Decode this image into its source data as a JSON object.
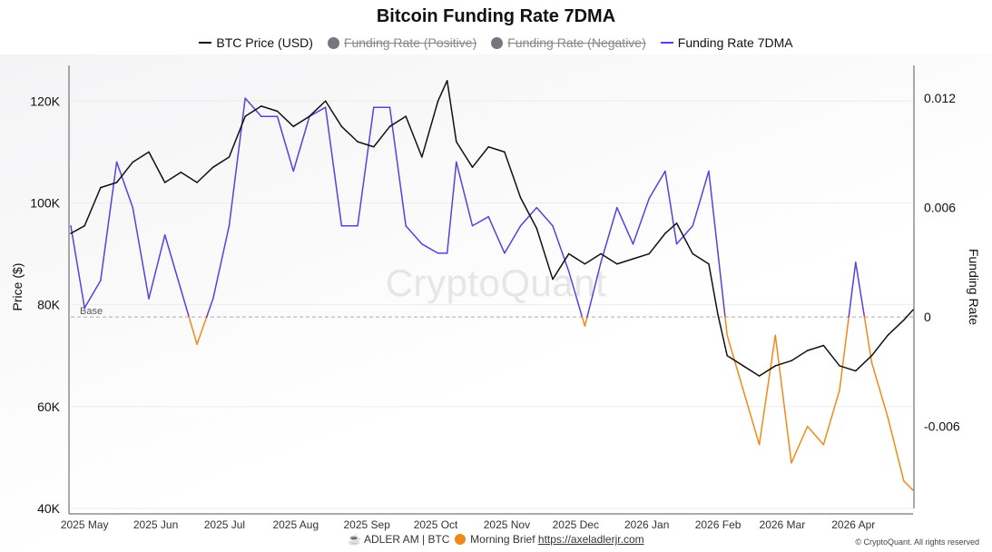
{
  "title": "Bitcoin Funding Rate 7DMA",
  "legend": [
    {
      "label": "BTC Price (USD)",
      "marker": "line",
      "color": "#111111",
      "enabled": true
    },
    {
      "label": "Funding Rate (Positive)",
      "marker": "dot",
      "color": "#76767e",
      "enabled": false
    },
    {
      "label": "Funding Rate (Negative)",
      "marker": "dot",
      "color": "#76767e",
      "enabled": false
    },
    {
      "label": "Funding Rate 7DMA",
      "marker": "line",
      "color": "#5b3fe0",
      "enabled": true
    }
  ],
  "watermark": "CryptoQuant",
  "footer": {
    "source_text": "ADLER AM | BTC",
    "brief_text": "Morning Brief",
    "link_text": "https://axeladlerjr.com",
    "copyright": "© CryptoQuant. All rights reserved"
  },
  "colors": {
    "price": "#111111",
    "funding_positive": "#5b3fe0",
    "funding_negative": "#ef8a1a",
    "baseline": "#aaaaaa",
    "grid": "#ececec"
  },
  "chart_data": {
    "type": "line",
    "x": [
      "2025-04-25",
      "2025-05-01",
      "2025-05-08",
      "2025-05-15",
      "2025-05-22",
      "2025-05-29",
      "2025-06-05",
      "2025-06-12",
      "2025-06-19",
      "2025-06-26",
      "2025-07-03",
      "2025-07-10",
      "2025-07-17",
      "2025-07-24",
      "2025-07-31",
      "2025-08-07",
      "2025-08-14",
      "2025-08-21",
      "2025-08-28",
      "2025-09-04",
      "2025-09-11",
      "2025-09-18",
      "2025-09-25",
      "2025-10-02",
      "2025-10-06",
      "2025-10-10",
      "2025-10-17",
      "2025-10-24",
      "2025-10-31",
      "2025-11-07",
      "2025-11-14",
      "2025-11-21",
      "2025-11-28",
      "2025-12-05",
      "2025-12-12",
      "2025-12-19",
      "2025-12-26",
      "2026-01-02",
      "2026-01-09",
      "2026-01-14",
      "2026-01-21",
      "2026-01-28",
      "2026-02-01",
      "2026-02-05",
      "2026-02-12",
      "2026-02-19",
      "2026-02-26",
      "2026-03-05",
      "2026-03-12",
      "2026-03-19",
      "2026-03-26",
      "2026-04-02",
      "2026-04-09",
      "2026-04-16",
      "2026-04-23",
      "2026-04-27"
    ],
    "series": [
      {
        "name": "BTC Price (USD)",
        "axis": "left",
        "values": [
          94000,
          95500,
          103000,
          104000,
          108000,
          110000,
          104000,
          106000,
          104000,
          107000,
          109000,
          117000,
          119000,
          118000,
          115000,
          117000,
          120000,
          115000,
          112000,
          111000,
          115000,
          117000,
          109000,
          120000,
          124000,
          112000,
          107000,
          111000,
          110000,
          101000,
          95000,
          85000,
          90000,
          88000,
          90000,
          88000,
          89000,
          90000,
          94000,
          96000,
          90000,
          88000,
          78000,
          70000,
          68000,
          66000,
          68000,
          69000,
          71000,
          72000,
          68000,
          67000,
          70000,
          74000,
          77000,
          79000
        ]
      },
      {
        "name": "Funding Rate 7DMA",
        "axis": "right",
        "values": [
          0.005,
          0.0005,
          0.002,
          0.0085,
          0.006,
          0.001,
          0.0045,
          0.0015,
          -0.0015,
          0.001,
          0.005,
          0.012,
          0.011,
          0.011,
          0.008,
          0.011,
          0.0115,
          0.005,
          0.005,
          0.0115,
          0.0115,
          0.005,
          0.004,
          0.0035,
          0.0035,
          0.0085,
          0.005,
          0.0055,
          0.0035,
          0.005,
          0.006,
          0.005,
          0.0025,
          -0.0005,
          0.003,
          0.006,
          0.004,
          0.0065,
          0.008,
          0.004,
          0.005,
          0.008,
          0.0035,
          -0.001,
          -0.004,
          -0.007,
          -0.001,
          -0.008,
          -0.006,
          -0.007,
          -0.004,
          0.003,
          -0.0025,
          -0.0055,
          -0.009,
          -0.0095
        ]
      }
    ],
    "xaxis_ticks": [
      "2025 May",
      "2025 Jun",
      "2025 Jul",
      "2025 Aug",
      "2025 Sep",
      "2025 Oct",
      "2025 Nov",
      "2025 Dec",
      "2026 Jan",
      "2026 Feb",
      "2026 Mar",
      "2026 Apr"
    ],
    "yaxis_left": {
      "label": "Price ($)",
      "ticks": [
        "40K",
        "60K",
        "80K",
        "100K",
        "120K"
      ],
      "range": [
        40000,
        127000
      ]
    },
    "yaxis_right": {
      "label": "Funding Rate",
      "ticks": [
        "-0.006",
        "0",
        "0.006",
        "0.012"
      ],
      "range": [
        -0.0105,
        0.0138
      ]
    },
    "baseline_label": "Base",
    "grid": true,
    "legend_position": "top"
  }
}
